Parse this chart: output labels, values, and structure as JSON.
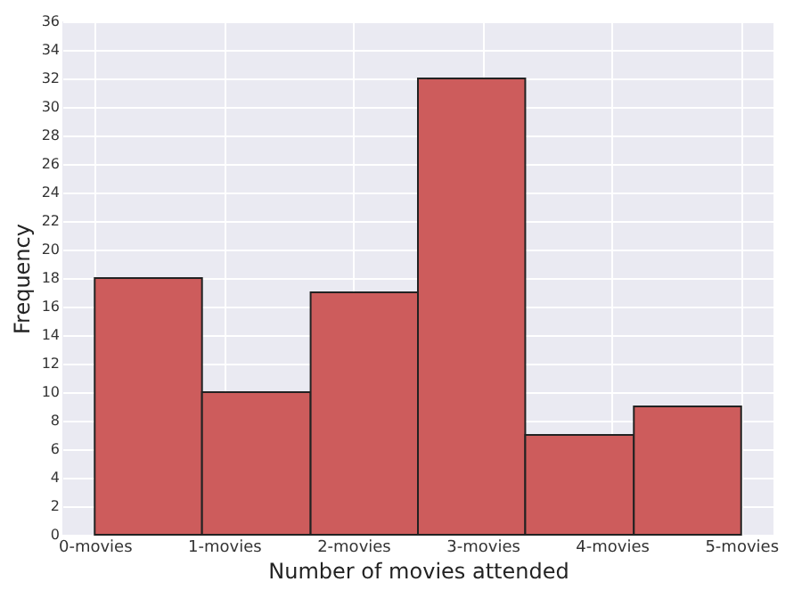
{
  "chart_data": {
    "type": "histogram",
    "xlabel": "Number of movies attended",
    "ylabel": "Frequency",
    "bins": [
      0,
      0.83,
      1.67,
      2.5,
      3.33,
      4.17,
      5
    ],
    "values": [
      18,
      10,
      17,
      32,
      7,
      9
    ],
    "color": "#cd5c5c",
    "xlim": [
      -0.25,
      5.25
    ],
    "xticks": [
      {
        "value": 0,
        "label": "0-movies"
      },
      {
        "value": 1,
        "label": "1-movies"
      },
      {
        "value": 2,
        "label": "2-movies"
      },
      {
        "value": 3,
        "label": "3-movies"
      },
      {
        "value": 4,
        "label": "4-movies"
      },
      {
        "value": 5,
        "label": "5-movies"
      }
    ],
    "ylim": [
      0,
      36
    ],
    "yticks": [
      0,
      2,
      4,
      6,
      8,
      10,
      12,
      14,
      16,
      18,
      20,
      22,
      24,
      26,
      28,
      30,
      32,
      34,
      36
    ],
    "grid": true
  }
}
